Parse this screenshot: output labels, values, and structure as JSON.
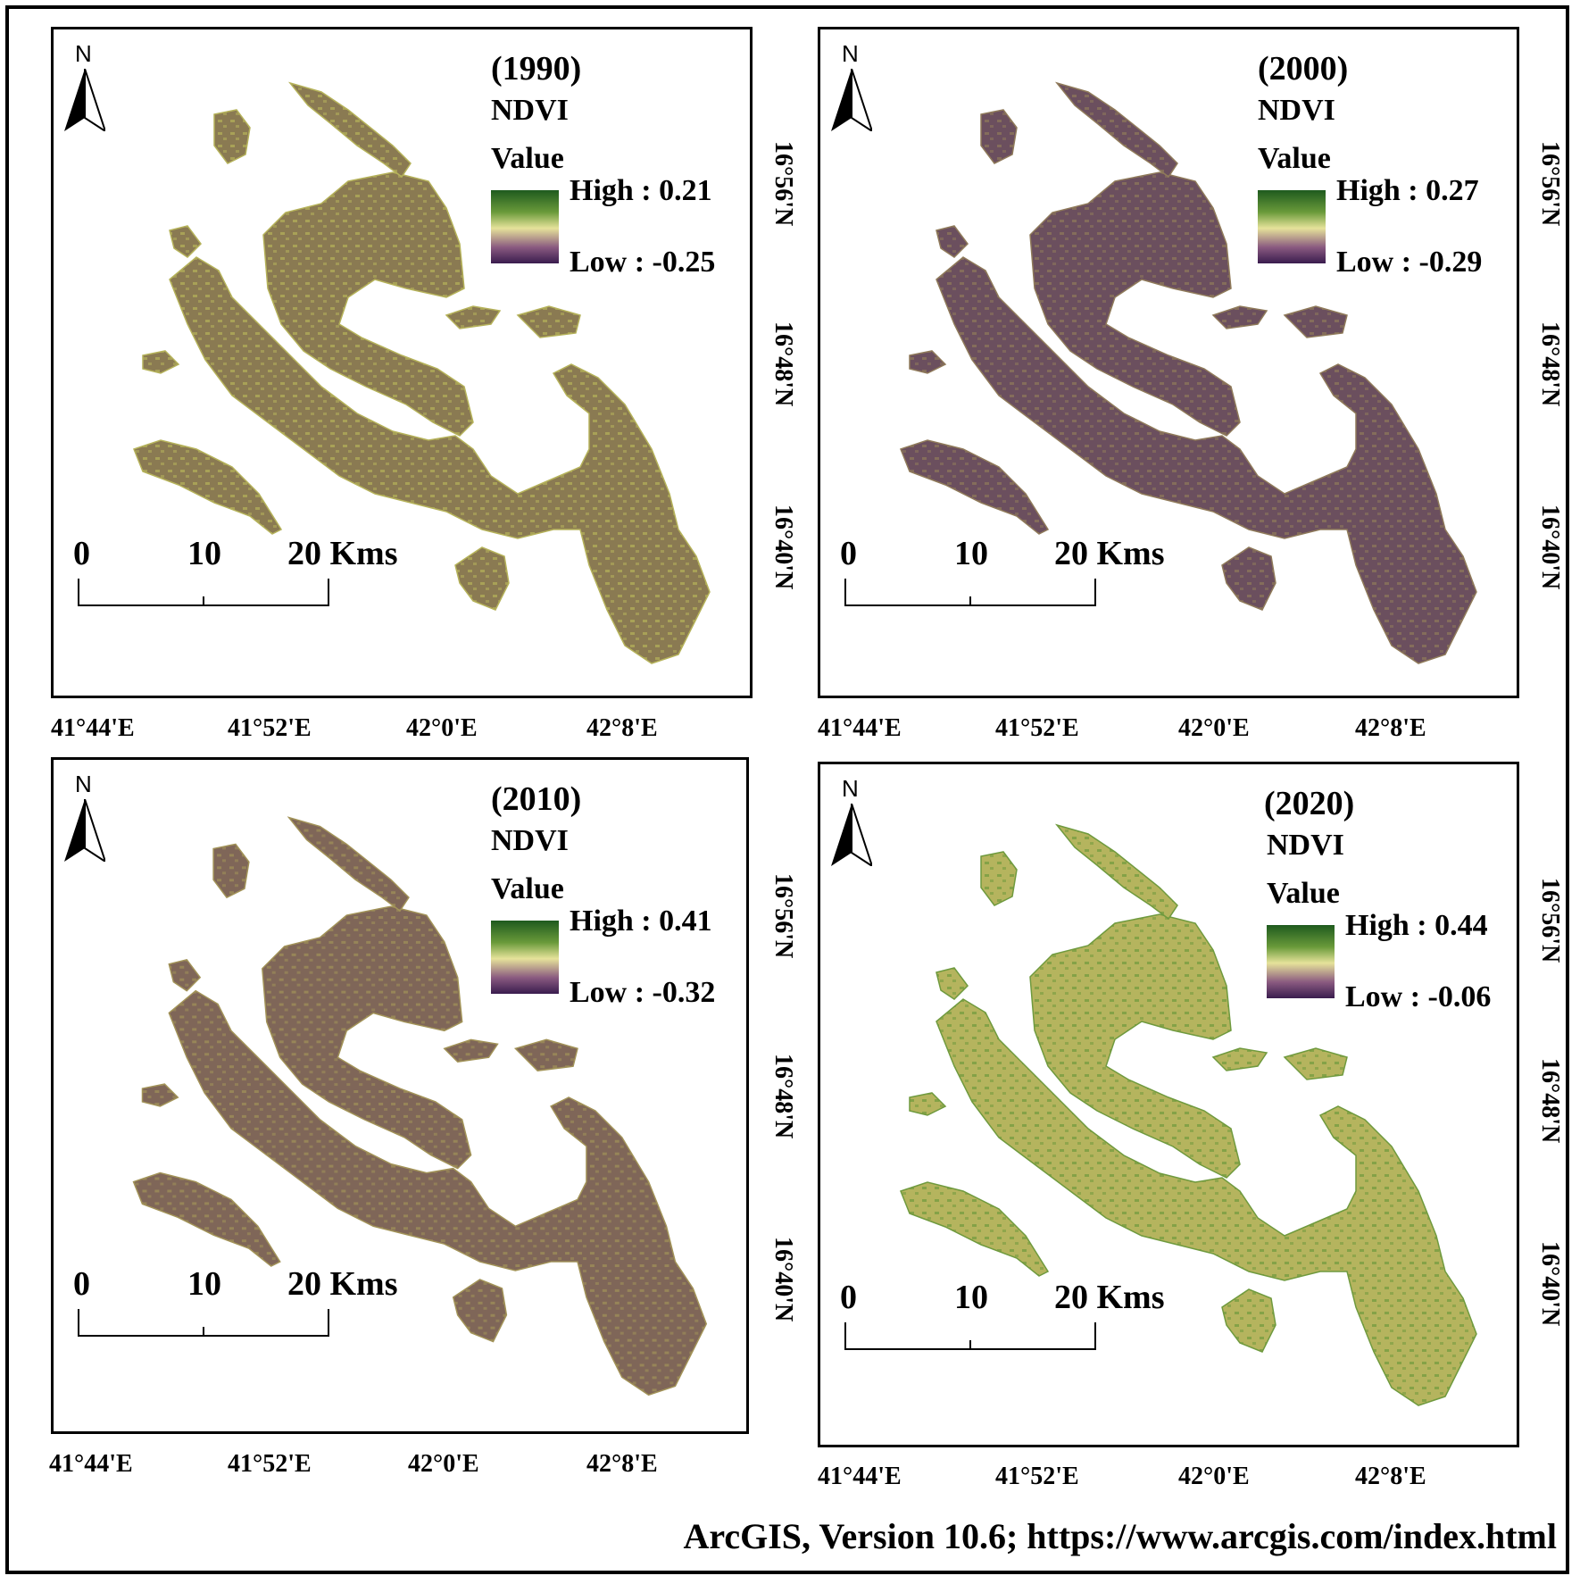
{
  "north_label": "N",
  "scale_labels": [
    "0",
    "10",
    "20 Kms"
  ],
  "legend_title": "NDVI",
  "legend_subtitle": "Value",
  "longitude_labels": [
    "41°44'E",
    "41°52'E",
    "42°0'E",
    "42°8'E"
  ],
  "latitude_labels": [
    "16°56'N",
    "16°48'N",
    "16°40'N"
  ],
  "panels": [
    {
      "year": "(1990)",
      "high": "High : 0.21",
      "low": "Low : -0.25",
      "base_color": "#8a7a52",
      "accent_color": "#b5b25a"
    },
    {
      "year": "(2000)",
      "high": "High : 0.27",
      "low": "Low : -0.29",
      "base_color": "#6b4f5e",
      "accent_color": "#8f7a5a"
    },
    {
      "year": "(2010)",
      "high": "High : 0.41",
      "low": "Low : -0.32",
      "base_color": "#7f6658",
      "accent_color": "#a29358"
    },
    {
      "year": "(2020)",
      "high": "High : 0.44",
      "low": "Low : -0.06",
      "base_color": "#b5b45e",
      "accent_color": "#6f9a3e"
    }
  ],
  "credit": "ArcGIS, Version 10.6; https://www.arcgis.com/index.html"
}
